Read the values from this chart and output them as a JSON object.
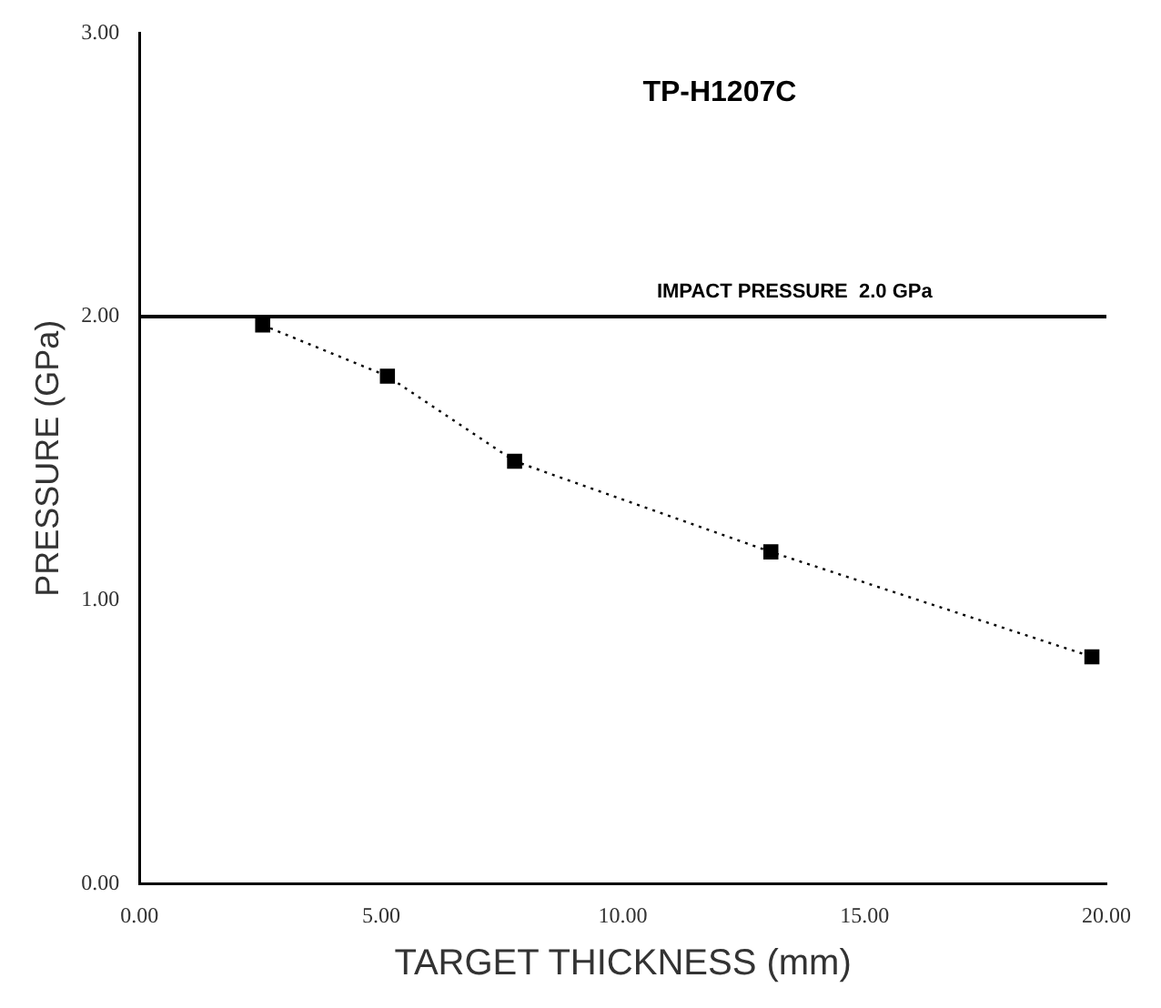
{
  "chart_data": {
    "type": "scatter",
    "title": "TP-H1207C",
    "xlabel": "TARGET THICKNESS (mm)",
    "ylabel": "PRESSURE (GPa)",
    "x": [
      2.55,
      5.13,
      7.76,
      13.06,
      19.7
    ],
    "series": [
      {
        "type": "line",
        "color": "#000000",
        "values": [
          1.97,
          1.79,
          1.49,
          1.17,
          0.8
        ]
      }
    ],
    "xlim": [
      0,
      20
    ],
    "xticks": [
      {
        "value": 0,
        "label": "0.00"
      },
      {
        "value": 5,
        "label": "5.00"
      },
      {
        "value": 10,
        "label": "10.00"
      },
      {
        "value": 15,
        "label": "15.00"
      },
      {
        "value": 20,
        "label": "20.00"
      }
    ],
    "ylim": [
      0,
      3
    ],
    "yticks": [
      {
        "value": 0,
        "label": "0.00"
      },
      {
        "value": 1,
        "label": "1.00"
      },
      {
        "value": 2,
        "label": "2.00"
      },
      {
        "value": 3,
        "label": "3.00"
      }
    ],
    "ref_lines": [
      {
        "axis": "y",
        "value": 2,
        "label": "IMPACT PRESSURE  2.0 GPa",
        "color": "#000000"
      }
    ],
    "marker": "square",
    "line_style": "dotted",
    "grid": false,
    "legend": false
  }
}
